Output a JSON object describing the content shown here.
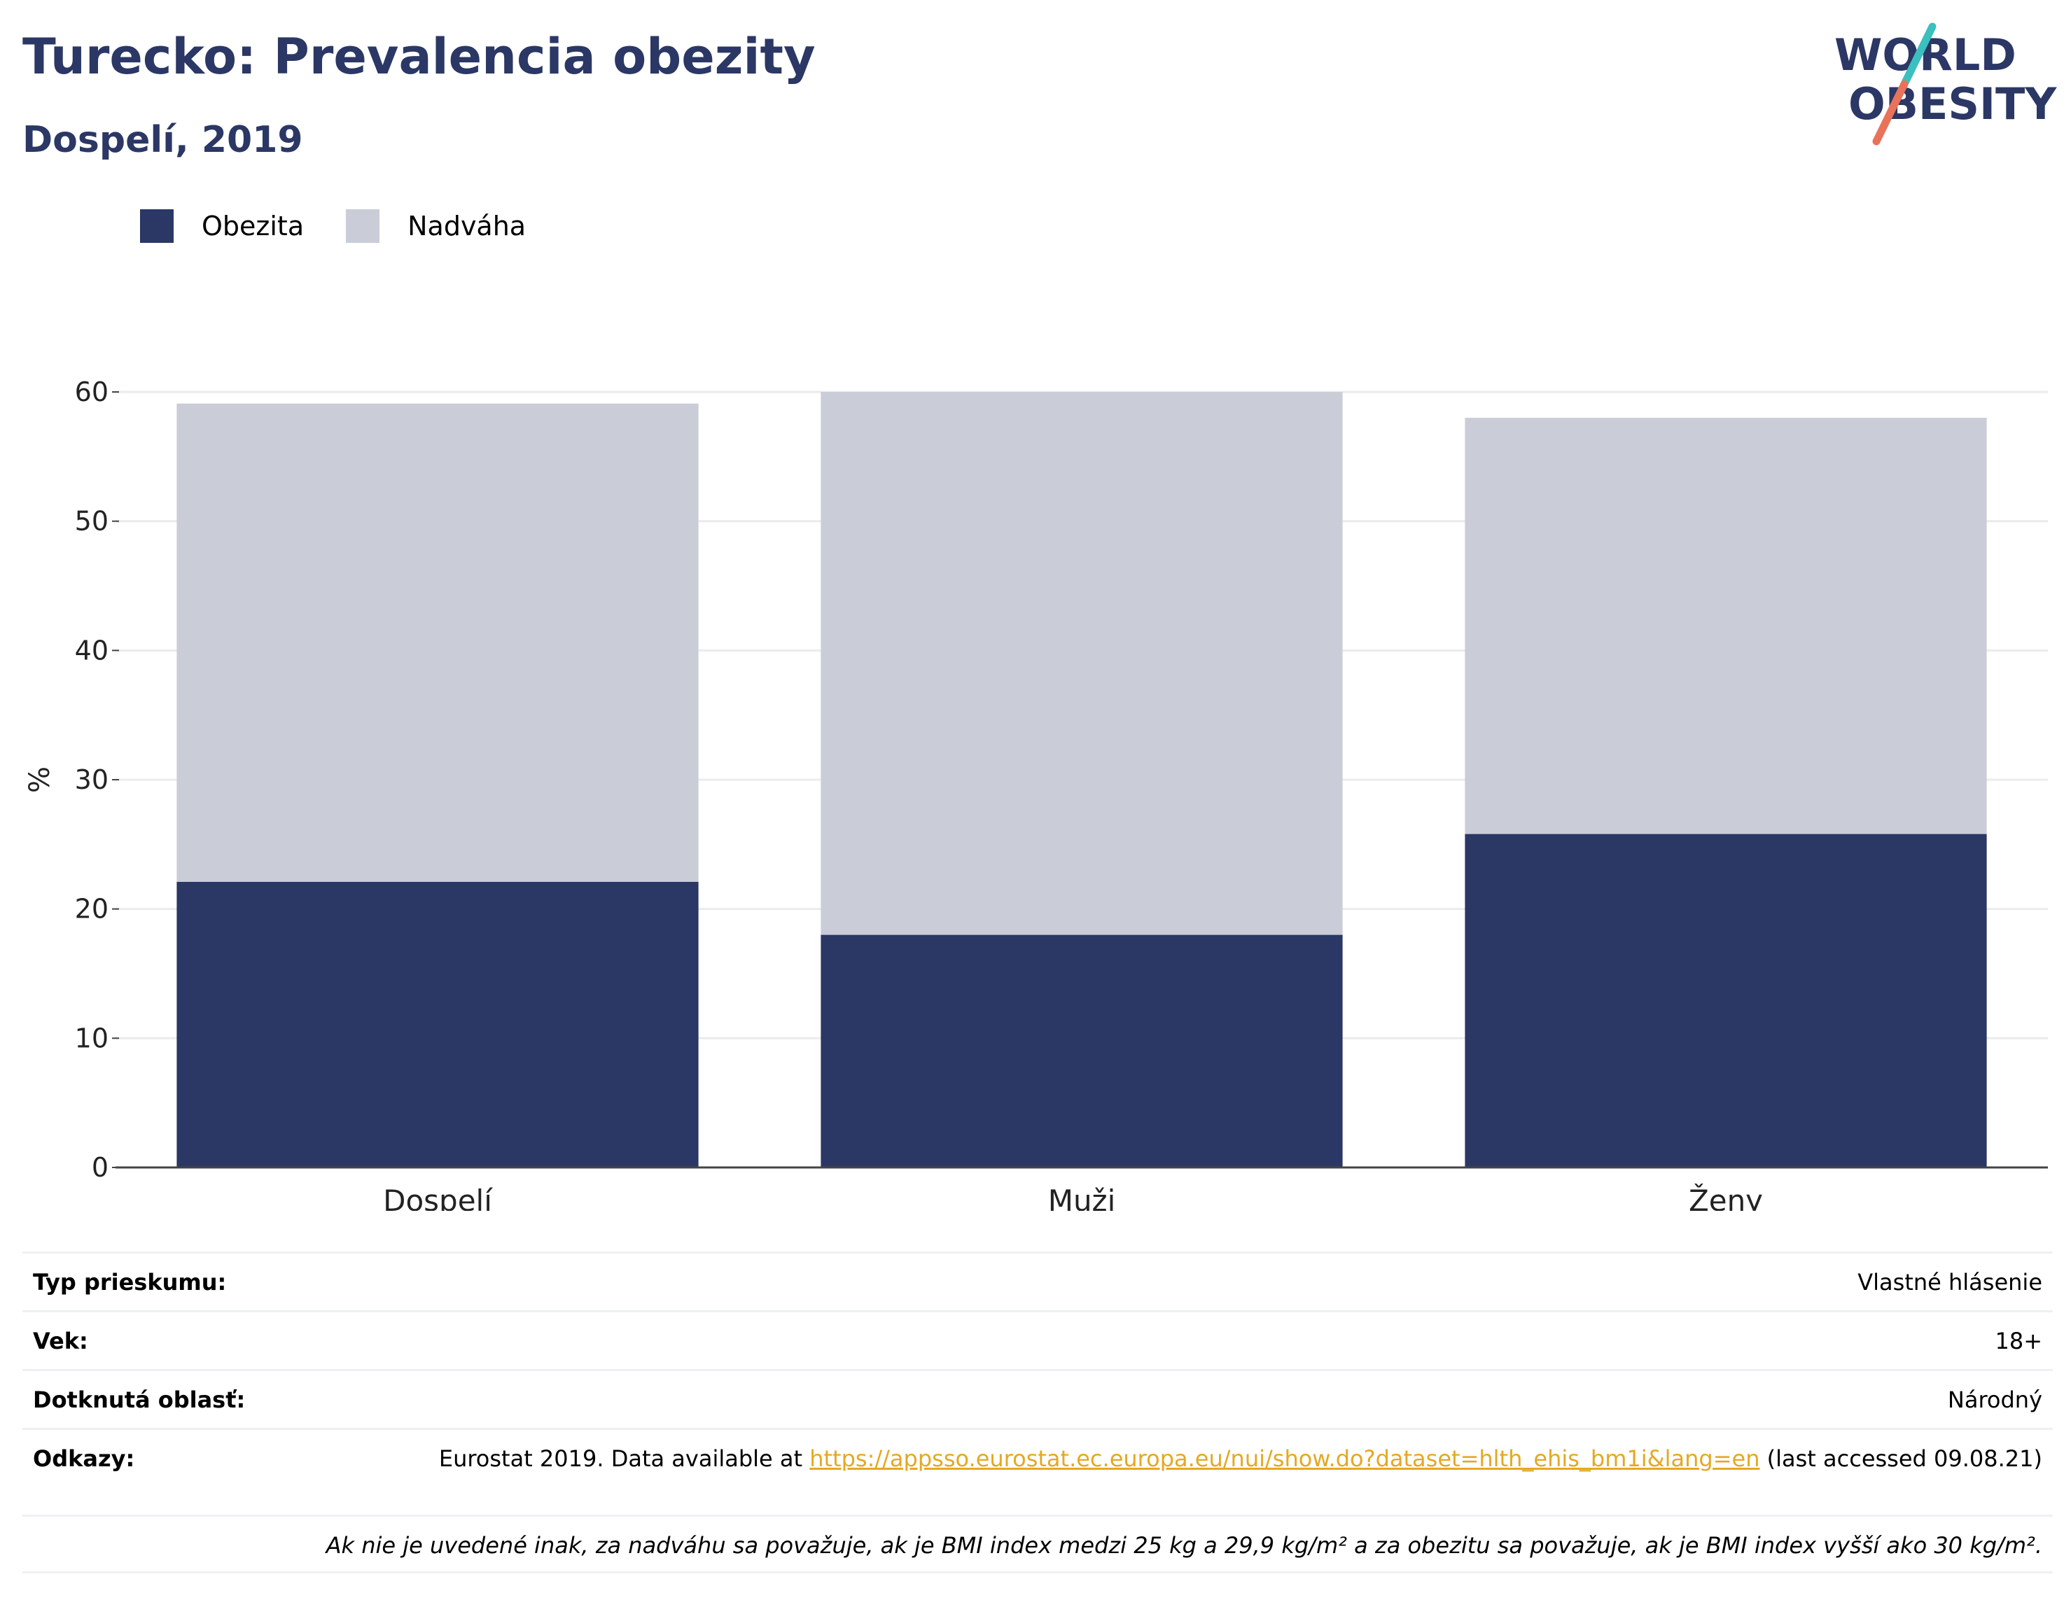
{
  "header": {
    "title": "Turecko: Prevalencia obezity",
    "subtitle": "Dospelí, 2019"
  },
  "logo": {
    "line1": "WORLD",
    "line2": "OBESITY",
    "brand_color": "#2b3765",
    "accent_teal": "#3bbfbf",
    "accent_coral": "#e8735a"
  },
  "colors": {
    "obesity": "#2b3765",
    "overweight": "#caccd8",
    "axis": "#444444",
    "grid": "#ebebeb"
  },
  "chart_data": {
    "type": "bar",
    "stacked": true,
    "title": "",
    "xlabel": "",
    "ylabel": "%",
    "ylim": [
      0,
      60
    ],
    "yticks": [
      0,
      10,
      20,
      30,
      40,
      50,
      60
    ],
    "categories": [
      "Dospelí",
      "Muži",
      "Ženy"
    ],
    "series": [
      {
        "name": "Obezita",
        "values": [
          22.1,
          18.0,
          25.8
        ]
      },
      {
        "name": "Nadváha",
        "values": [
          37.0,
          42.0,
          32.2
        ]
      }
    ],
    "legend_position": "top-left",
    "grid": true
  },
  "info": {
    "survey_type_label": "Typ prieskumu:",
    "survey_type_value": "Vlastné hlásenie",
    "age_label": "Vek:",
    "age_value": "18+",
    "area_label": "Dotknutá oblasť:",
    "area_value": "Národný",
    "refs_label": "Odkazy:",
    "refs_prefix": "Eurostat 2019. Data available at ",
    "refs_link": "https://appsso.eurostat.ec.europa.eu/nui/show.do?dataset=hlth_ehis_bm1i&lang=en",
    "refs_suffix": " (last accessed 09.08.21)",
    "note": "Ak nie je uvedené inak, za nadváhu sa považuje, ak je BMI index medzi 25 kg a 29,9 kg/m² a za obezitu sa považuje, ak je BMI index vyšší ako 30 kg/m²."
  }
}
